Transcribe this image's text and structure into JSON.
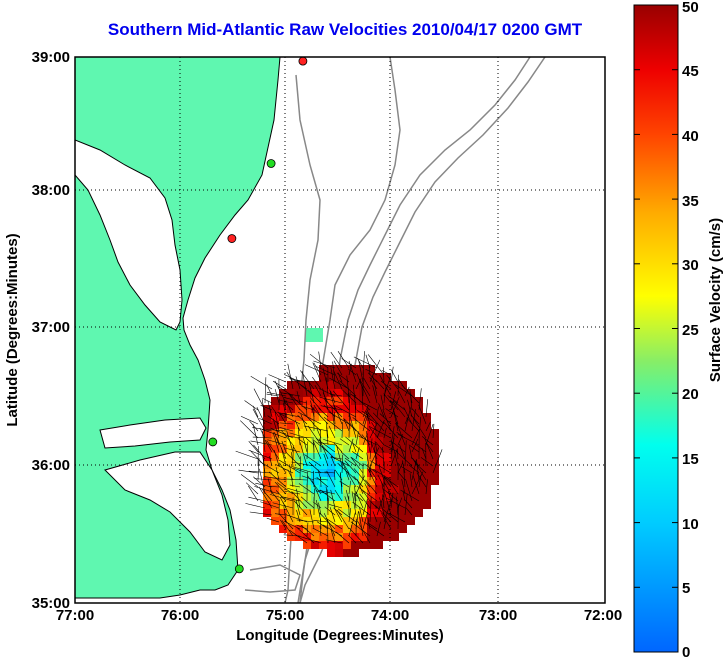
{
  "title": "Southern Mid-Atlantic Raw Velocities 2010/04/17 0200 GMT",
  "x_axis": {
    "label": "Longitude (Degrees:Minutes)",
    "ticks": [
      "77:00",
      "76:00",
      "75:00",
      "74:00",
      "73:00",
      "72:00"
    ]
  },
  "y_axis": {
    "label": "Latitude (Degrees:Minutes)",
    "ticks": [
      "39:00",
      "38:00",
      "37:00",
      "36:00",
      "35:00"
    ]
  },
  "colorbar": {
    "label": "Surface Velocity (cm/s)",
    "ticks": [
      "50",
      "45",
      "40",
      "35",
      "30",
      "25",
      "20",
      "15",
      "10",
      "5",
      "0"
    ],
    "min": 0,
    "max": 50
  },
  "colors": {
    "land": "#5ff7b0",
    "water": "#ffffff",
    "title": "#0000ee",
    "bathymetry": "#888888",
    "station_green": "#22dd22",
    "station_red": "#ff2222"
  },
  "stations": [
    {
      "lon": -74.85,
      "lat": 38.97,
      "status": "red"
    },
    {
      "lon": -75.15,
      "lat": 38.22,
      "status": "green"
    },
    {
      "lon": -75.52,
      "lat": 37.67,
      "status": "red"
    },
    {
      "lon": -75.7,
      "lat": 36.18,
      "status": "green"
    },
    {
      "lon": -75.45,
      "lat": 35.25,
      "status": "green"
    }
  ]
}
